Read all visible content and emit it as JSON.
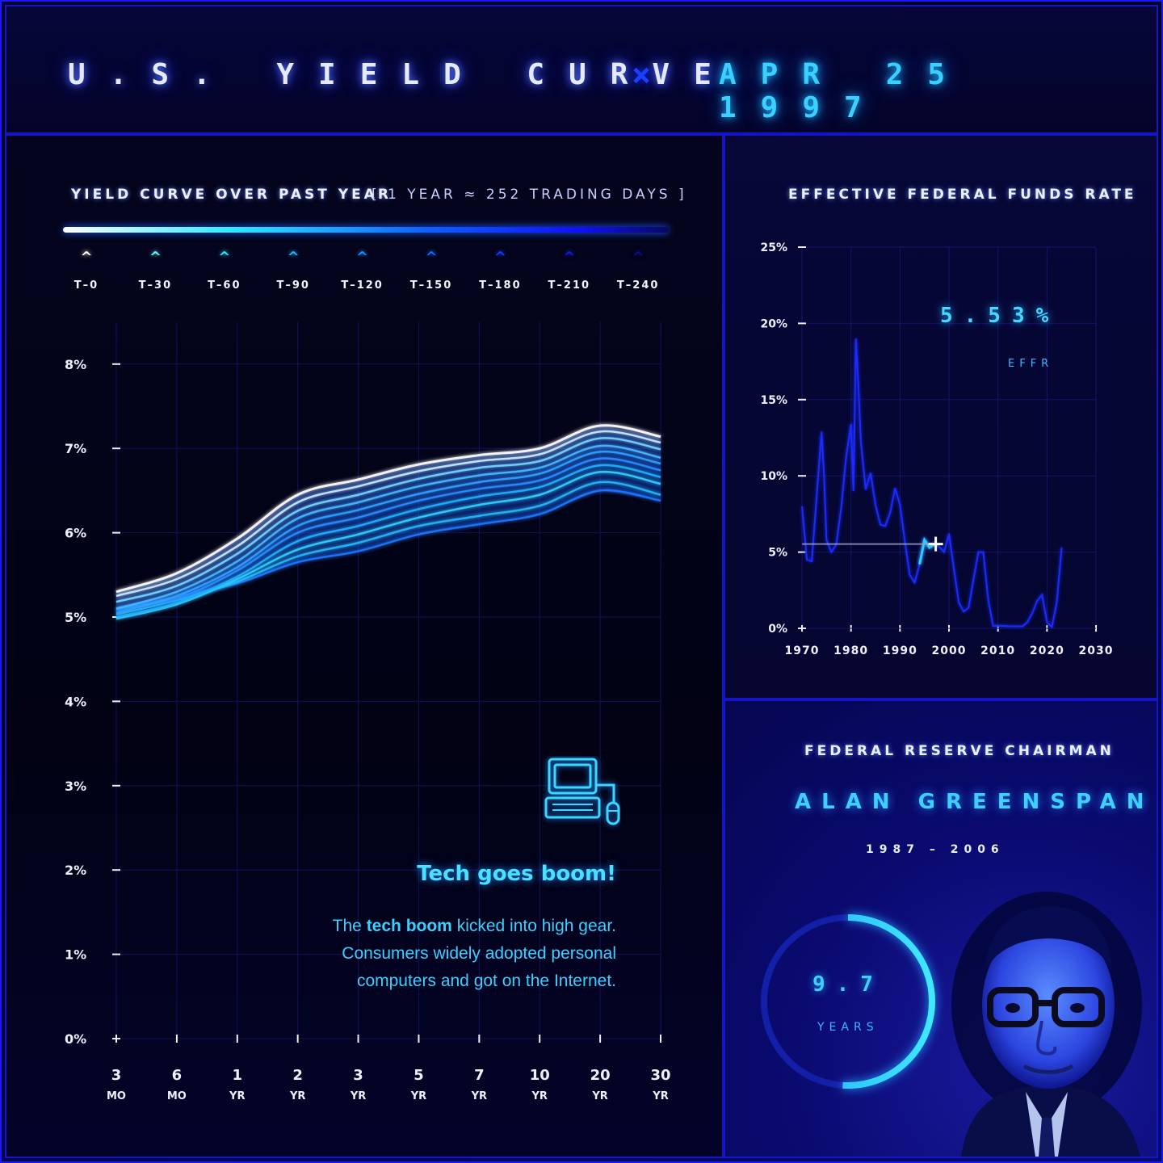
{
  "header": {
    "title": "U.S. YIELD CURVE",
    "separator": "×",
    "date": "APR 25 1997"
  },
  "yield_section": {
    "title": "YIELD CURVE OVER PAST YEAR",
    "subtitle": "[ 1 YEAR ≈ 252 TRADING DAYS ]",
    "legend": [
      {
        "label": "T–0",
        "color": "#ffffff"
      },
      {
        "label": "T–30",
        "color": "#6ef0ff"
      },
      {
        "label": "T–60",
        "color": "#30e0ff"
      },
      {
        "label": "T–90",
        "color": "#20b8ff"
      },
      {
        "label": "T–120",
        "color": "#1890ff"
      },
      {
        "label": "T–150",
        "color": "#1468ff"
      },
      {
        "label": "T–180",
        "color": "#1040ff"
      },
      {
        "label": "T–210",
        "color": "#1020d0"
      },
      {
        "label": "T–240",
        "color": "#0c1080"
      }
    ]
  },
  "annotation": {
    "title": "Tech goes boom!",
    "body_pre": "The ",
    "body_bold": "tech boom",
    "body_post": " kicked into high gear. Consumers widely adopted personal computers and got on the Internet.",
    "icon": "computer-icon"
  },
  "effr_section": {
    "title": "EFFECTIVE FEDERAL FUNDS RATE",
    "value": "5.53%",
    "label": "EFFR"
  },
  "chair_section": {
    "title": "FEDERAL RESERVE CHAIRMAN",
    "name": "ALAN GREENSPAN",
    "term": "1987 – 2006",
    "tenure_value": "9.7",
    "tenure_unit": "YEARS",
    "tenure_fraction": 0.51
  },
  "chart_data": [
    {
      "type": "line",
      "title": "YIELD CURVE OVER PAST YEAR",
      "categories": [
        "3 MO",
        "6 MO",
        "1 YR",
        "2 YR",
        "3 YR",
        "5 YR",
        "7 YR",
        "10 YR",
        "20 YR",
        "30 YR"
      ],
      "x_tick_top": [
        "3",
        "6",
        "1",
        "2",
        "3",
        "5",
        "7",
        "10",
        "20",
        "30"
      ],
      "x_tick_bottom": [
        "MO",
        "MO",
        "YR",
        "YR",
        "YR",
        "YR",
        "YR",
        "YR",
        "YR",
        "YR"
      ],
      "y_ticks": [
        "0%",
        "1%",
        "2%",
        "3%",
        "4%",
        "5%",
        "6%",
        "7%",
        "8%"
      ],
      "ylim": [
        0,
        8.5
      ],
      "grid": true,
      "series": [
        {
          "values": [
            5.3,
            5.52,
            5.93,
            6.45,
            6.63,
            6.81,
            6.92,
            7.0,
            7.27,
            7.14
          ]
        },
        {
          "values": [
            5.25,
            5.45,
            5.84,
            6.36,
            6.55,
            6.73,
            6.85,
            6.93,
            7.2,
            7.07
          ]
        },
        {
          "values": [
            5.18,
            5.37,
            5.75,
            6.26,
            6.45,
            6.64,
            6.77,
            6.85,
            7.12,
            6.99
          ]
        },
        {
          "values": [
            5.1,
            5.3,
            5.66,
            6.17,
            6.36,
            6.55,
            6.68,
            6.77,
            7.03,
            6.89
          ]
        },
        {
          "values": [
            5.05,
            5.25,
            5.59,
            6.08,
            6.27,
            6.46,
            6.6,
            6.7,
            6.96,
            6.82
          ]
        },
        {
          "values": [
            5.1,
            5.22,
            5.55,
            6.0,
            6.18,
            6.38,
            6.52,
            6.62,
            6.88,
            6.74
          ]
        },
        {
          "values": [
            5.0,
            5.17,
            5.48,
            5.9,
            6.08,
            6.28,
            6.43,
            6.54,
            6.8,
            6.66
          ]
        },
        {
          "values": [
            4.98,
            5.15,
            5.45,
            5.8,
            5.98,
            6.18,
            6.33,
            6.45,
            6.72,
            6.58
          ]
        },
        {
          "values": [
            5.03,
            5.2,
            5.42,
            5.72,
            5.88,
            6.08,
            6.2,
            6.32,
            6.6,
            6.45
          ]
        },
        {
          "values": [
            5.08,
            5.24,
            5.4,
            5.65,
            5.78,
            5.98,
            6.1,
            6.22,
            6.5,
            6.38
          ]
        }
      ]
    },
    {
      "type": "line",
      "title": "EFFECTIVE FEDERAL FUNDS RATE",
      "xlim": [
        1970,
        2030
      ],
      "ylim": [
        0,
        25
      ],
      "x_ticks": [
        "1970",
        "1980",
        "1990",
        "2000",
        "2010",
        "2020",
        "2030"
      ],
      "y_ticks": [
        "0%",
        "5%",
        "10%",
        "15%",
        "20%",
        "25%"
      ],
      "grid": true,
      "current": {
        "x": 1997.3,
        "y": 5.53
      },
      "x": [
        1970,
        1971,
        1972,
        1973,
        1974,
        1974.5,
        1975,
        1976,
        1977,
        1978,
        1979,
        1980,
        1980.5,
        1981,
        1981.5,
        1982,
        1983,
        1984,
        1985,
        1986,
        1987,
        1988,
        1989,
        1990,
        1991,
        1992,
        1993,
        1994,
        1995,
        1996,
        1997,
        1998,
        1999,
        2000,
        2001,
        2002,
        2003,
        2004,
        2005,
        2006,
        2007,
        2008,
        2009,
        2010,
        2012,
        2015,
        2016,
        2017,
        2018,
        2019,
        2020,
        2021,
        2022,
        2023
      ],
      "y": [
        8.0,
        4.5,
        4.4,
        8.7,
        12.9,
        10.0,
        5.8,
        5.0,
        5.5,
        7.9,
        11.2,
        13.4,
        9.0,
        19.0,
        16.0,
        12.3,
        9.1,
        10.2,
        8.1,
        6.8,
        6.7,
        7.6,
        9.2,
        8.1,
        5.7,
        3.5,
        3.0,
        4.2,
        5.8,
        5.3,
        5.5,
        5.35,
        5.0,
        6.2,
        3.9,
        1.7,
        1.1,
        1.35,
        3.2,
        5.0,
        5.0,
        1.9,
        0.16,
        0.18,
        0.14,
        0.13,
        0.4,
        1.0,
        1.8,
        2.2,
        0.4,
        0.08,
        1.7,
        5.3
      ]
    }
  ]
}
